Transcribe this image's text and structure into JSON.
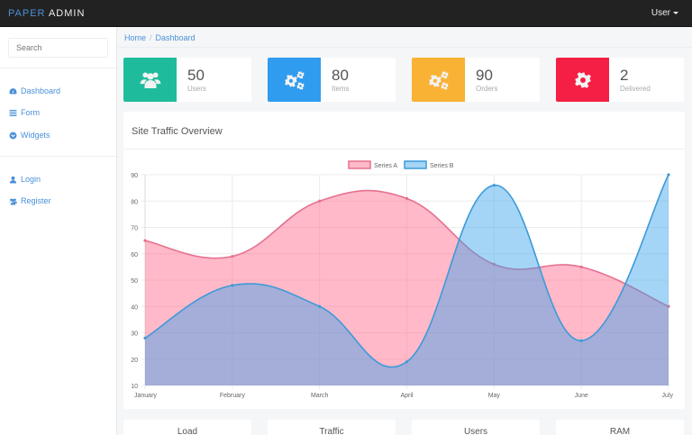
{
  "topbar": {
    "brand_part1": "PAPER",
    "brand_part2": "ADMIN",
    "user_menu_label": "User"
  },
  "sidebar": {
    "search_placeholder": "Search",
    "items": [
      {
        "label": "Dashboard",
        "icon": "dashboard-icon"
      },
      {
        "label": "Form",
        "icon": "list-icon"
      },
      {
        "label": "Widgets",
        "icon": "chevron-circle-icon"
      },
      {
        "label": "Login",
        "icon": "user-icon"
      },
      {
        "label": "Register",
        "icon": "users-icon"
      }
    ]
  },
  "breadcrumb": {
    "home": "Home",
    "current": "Dashboard"
  },
  "stats": [
    {
      "value": "50",
      "label": "Users",
      "icon": "users-icon",
      "color": "#1ebc9c"
    },
    {
      "value": "80",
      "label": "Items",
      "icon": "cogs-icon",
      "color": "#2f9cf0"
    },
    {
      "value": "90",
      "label": "Orders",
      "icon": "cogs-icon",
      "color": "#f9b234"
    },
    {
      "value": "2",
      "label": "Delivered",
      "icon": "cog-icon",
      "color": "#f51f45"
    }
  ],
  "traffic_panel": {
    "title": "Site Traffic Overview"
  },
  "chart_data": {
    "type": "area",
    "title": "Site Traffic Overview",
    "categories": [
      "January",
      "February",
      "March",
      "April",
      "May",
      "June",
      "July"
    ],
    "series": [
      {
        "name": "Series A",
        "values": [
          65,
          59,
          80,
          81,
          56,
          55,
          40
        ],
        "stroke": "#e5708f",
        "fill": "rgba(255,99,132,0.45)"
      },
      {
        "name": "Series B",
        "values": [
          28,
          48,
          40,
          19,
          86,
          27,
          90
        ],
        "stroke": "#3d9ad9",
        "fill": "rgba(54,162,235,0.45)"
      }
    ],
    "yticks": [
      "90",
      "80",
      "70",
      "60",
      "50",
      "40",
      "30",
      "20",
      "10"
    ],
    "ylim": [
      10,
      90
    ],
    "legend_position": "top",
    "grid": true,
    "xlabel": "",
    "ylabel": ""
  },
  "bottom_cards": [
    {
      "title": "Load"
    },
    {
      "title": "Traffic"
    },
    {
      "title": "Users"
    },
    {
      "title": "RAM"
    }
  ]
}
